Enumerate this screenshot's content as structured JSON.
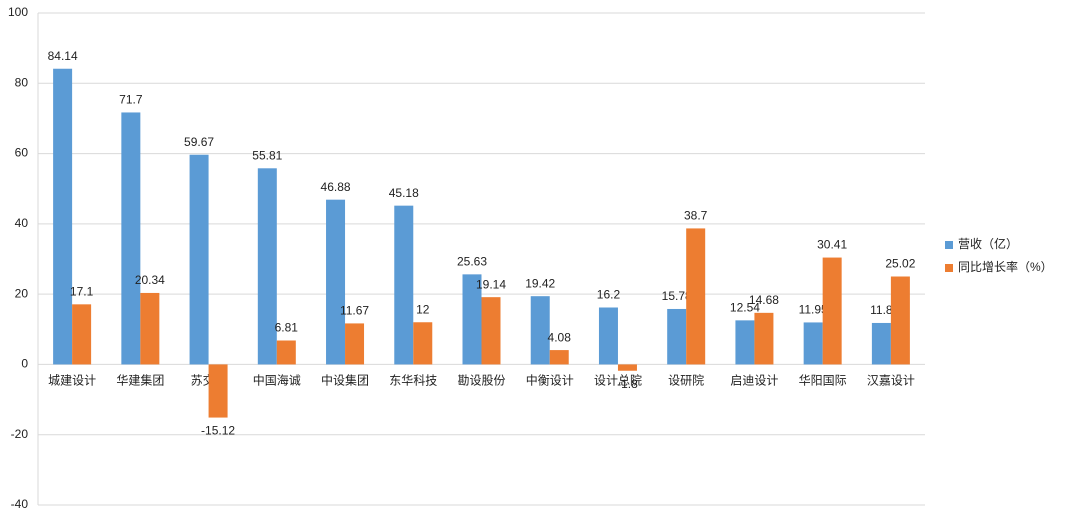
{
  "chart_data": {
    "type": "bar",
    "categories": [
      "城建设计",
      "华建集团",
      "苏交科",
      "中国海诚",
      "中设集团",
      "东华科技",
      "勘设股份",
      "中衡设计",
      "设计总院",
      "设研院",
      "启迪设计",
      "华阳国际",
      "汉嘉设计"
    ],
    "series": [
      {
        "name": "营收（亿）",
        "color": "#5b9bd5",
        "values": [
          84.14,
          71.7,
          59.67,
          55.81,
          46.88,
          45.18,
          25.63,
          19.42,
          16.2,
          15.78,
          12.54,
          11.95,
          11.8
        ]
      },
      {
        "name": "同比增长率（%）",
        "color": "#ed7d31",
        "values": [
          17.1,
          20.34,
          -15.12,
          6.81,
          11.67,
          12,
          19.14,
          4.08,
          -1.8,
          38.7,
          14.68,
          30.41,
          25.02
        ]
      }
    ],
    "ylim": [
      -40,
      100
    ],
    "yticks": [
      -40,
      -20,
      0,
      20,
      40,
      60,
      80,
      100
    ],
    "grid": true,
    "legend": "right"
  }
}
